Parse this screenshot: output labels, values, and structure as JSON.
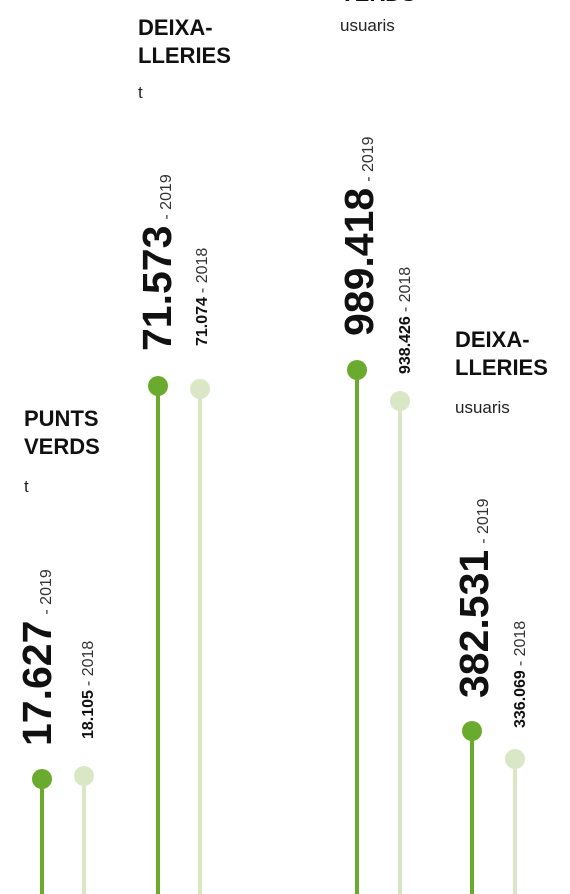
{
  "groups": [
    {
      "title": [
        "PUNTS",
        "VERDS"
      ],
      "unit": "t",
      "current": {
        "value": "17.627",
        "year": "- 2019"
      },
      "previous": {
        "value": "18.105",
        "year": "- 2018"
      }
    },
    {
      "title": [
        "DEIXA-",
        "LLERIES"
      ],
      "unit": "t",
      "current": {
        "value": "71.573",
        "year": "- 2019"
      },
      "previous": {
        "value": "71.074",
        "year": "- 2018"
      }
    },
    {
      "title": [
        "VERDS"
      ],
      "unit": "usuaris",
      "current": {
        "value": "989.418",
        "year": "- 2019"
      },
      "previous": {
        "value": "938.426",
        "year": "- 2018"
      }
    },
    {
      "title": [
        "DEIXA-",
        "LLERIES"
      ],
      "unit": "usuaris",
      "current": {
        "value": "382.531",
        "year": "- 2019"
      },
      "previous": {
        "value": "336.069",
        "year": "- 2018"
      }
    }
  ]
}
